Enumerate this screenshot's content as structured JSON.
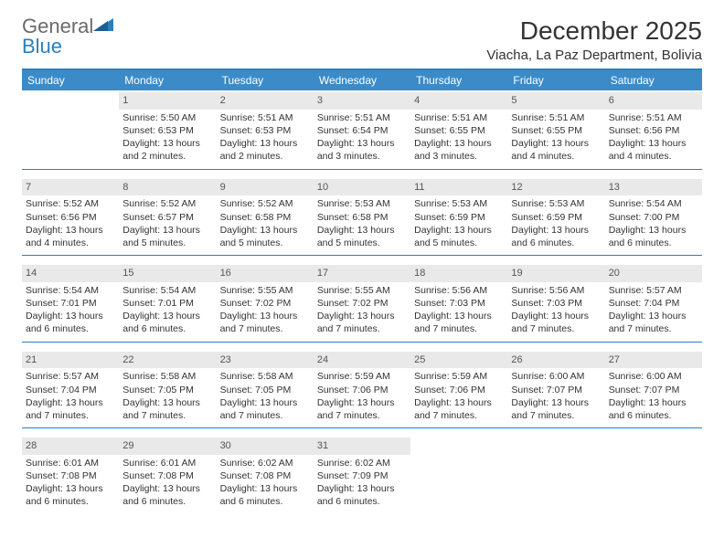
{
  "brand": {
    "word1": "General",
    "word2": "Blue"
  },
  "title": "December 2025",
  "location": "Viacha, La Paz Department, Bolivia",
  "colors": {
    "accent": "#3b8bc8",
    "rule": "#2a7fbf",
    "dayStrip": "#e9e9e9"
  },
  "dayHeaders": [
    "Sunday",
    "Monday",
    "Tuesday",
    "Wednesday",
    "Thursday",
    "Friday",
    "Saturday"
  ],
  "weeks": [
    [
      {
        "n": "",
        "empty": true
      },
      {
        "n": "1",
        "sr": "Sunrise: 5:50 AM",
        "ss": "Sunset: 6:53 PM",
        "dl": "Daylight: 13 hours and 2 minutes."
      },
      {
        "n": "2",
        "sr": "Sunrise: 5:51 AM",
        "ss": "Sunset: 6:53 PM",
        "dl": "Daylight: 13 hours and 2 minutes."
      },
      {
        "n": "3",
        "sr": "Sunrise: 5:51 AM",
        "ss": "Sunset: 6:54 PM",
        "dl": "Daylight: 13 hours and 3 minutes."
      },
      {
        "n": "4",
        "sr": "Sunrise: 5:51 AM",
        "ss": "Sunset: 6:55 PM",
        "dl": "Daylight: 13 hours and 3 minutes."
      },
      {
        "n": "5",
        "sr": "Sunrise: 5:51 AM",
        "ss": "Sunset: 6:55 PM",
        "dl": "Daylight: 13 hours and 4 minutes."
      },
      {
        "n": "6",
        "sr": "Sunrise: 5:51 AM",
        "ss": "Sunset: 6:56 PM",
        "dl": "Daylight: 13 hours and 4 minutes."
      }
    ],
    [
      {
        "n": "7",
        "sr": "Sunrise: 5:52 AM",
        "ss": "Sunset: 6:56 PM",
        "dl": "Daylight: 13 hours and 4 minutes."
      },
      {
        "n": "8",
        "sr": "Sunrise: 5:52 AM",
        "ss": "Sunset: 6:57 PM",
        "dl": "Daylight: 13 hours and 5 minutes."
      },
      {
        "n": "9",
        "sr": "Sunrise: 5:52 AM",
        "ss": "Sunset: 6:58 PM",
        "dl": "Daylight: 13 hours and 5 minutes."
      },
      {
        "n": "10",
        "sr": "Sunrise: 5:53 AM",
        "ss": "Sunset: 6:58 PM",
        "dl": "Daylight: 13 hours and 5 minutes."
      },
      {
        "n": "11",
        "sr": "Sunrise: 5:53 AM",
        "ss": "Sunset: 6:59 PM",
        "dl": "Daylight: 13 hours and 5 minutes."
      },
      {
        "n": "12",
        "sr": "Sunrise: 5:53 AM",
        "ss": "Sunset: 6:59 PM",
        "dl": "Daylight: 13 hours and 6 minutes."
      },
      {
        "n": "13",
        "sr": "Sunrise: 5:54 AM",
        "ss": "Sunset: 7:00 PM",
        "dl": "Daylight: 13 hours and 6 minutes."
      }
    ],
    [
      {
        "n": "14",
        "sr": "Sunrise: 5:54 AM",
        "ss": "Sunset: 7:01 PM",
        "dl": "Daylight: 13 hours and 6 minutes."
      },
      {
        "n": "15",
        "sr": "Sunrise: 5:54 AM",
        "ss": "Sunset: 7:01 PM",
        "dl": "Daylight: 13 hours and 6 minutes."
      },
      {
        "n": "16",
        "sr": "Sunrise: 5:55 AM",
        "ss": "Sunset: 7:02 PM",
        "dl": "Daylight: 13 hours and 7 minutes."
      },
      {
        "n": "17",
        "sr": "Sunrise: 5:55 AM",
        "ss": "Sunset: 7:02 PM",
        "dl": "Daylight: 13 hours and 7 minutes."
      },
      {
        "n": "18",
        "sr": "Sunrise: 5:56 AM",
        "ss": "Sunset: 7:03 PM",
        "dl": "Daylight: 13 hours and 7 minutes."
      },
      {
        "n": "19",
        "sr": "Sunrise: 5:56 AM",
        "ss": "Sunset: 7:03 PM",
        "dl": "Daylight: 13 hours and 7 minutes."
      },
      {
        "n": "20",
        "sr": "Sunrise: 5:57 AM",
        "ss": "Sunset: 7:04 PM",
        "dl": "Daylight: 13 hours and 7 minutes."
      }
    ],
    [
      {
        "n": "21",
        "sr": "Sunrise: 5:57 AM",
        "ss": "Sunset: 7:04 PM",
        "dl": "Daylight: 13 hours and 7 minutes."
      },
      {
        "n": "22",
        "sr": "Sunrise: 5:58 AM",
        "ss": "Sunset: 7:05 PM",
        "dl": "Daylight: 13 hours and 7 minutes."
      },
      {
        "n": "23",
        "sr": "Sunrise: 5:58 AM",
        "ss": "Sunset: 7:05 PM",
        "dl": "Daylight: 13 hours and 7 minutes."
      },
      {
        "n": "24",
        "sr": "Sunrise: 5:59 AM",
        "ss": "Sunset: 7:06 PM",
        "dl": "Daylight: 13 hours and 7 minutes."
      },
      {
        "n": "25",
        "sr": "Sunrise: 5:59 AM",
        "ss": "Sunset: 7:06 PM",
        "dl": "Daylight: 13 hours and 7 minutes."
      },
      {
        "n": "26",
        "sr": "Sunrise: 6:00 AM",
        "ss": "Sunset: 7:07 PM",
        "dl": "Daylight: 13 hours and 7 minutes."
      },
      {
        "n": "27",
        "sr": "Sunrise: 6:00 AM",
        "ss": "Sunset: 7:07 PM",
        "dl": "Daylight: 13 hours and 6 minutes."
      }
    ],
    [
      {
        "n": "28",
        "sr": "Sunrise: 6:01 AM",
        "ss": "Sunset: 7:08 PM",
        "dl": "Daylight: 13 hours and 6 minutes."
      },
      {
        "n": "29",
        "sr": "Sunrise: 6:01 AM",
        "ss": "Sunset: 7:08 PM",
        "dl": "Daylight: 13 hours and 6 minutes."
      },
      {
        "n": "30",
        "sr": "Sunrise: 6:02 AM",
        "ss": "Sunset: 7:08 PM",
        "dl": "Daylight: 13 hours and 6 minutes."
      },
      {
        "n": "31",
        "sr": "Sunrise: 6:02 AM",
        "ss": "Sunset: 7:09 PM",
        "dl": "Daylight: 13 hours and 6 minutes."
      },
      {
        "n": "",
        "empty": true
      },
      {
        "n": "",
        "empty": true
      },
      {
        "n": "",
        "empty": true
      }
    ]
  ]
}
